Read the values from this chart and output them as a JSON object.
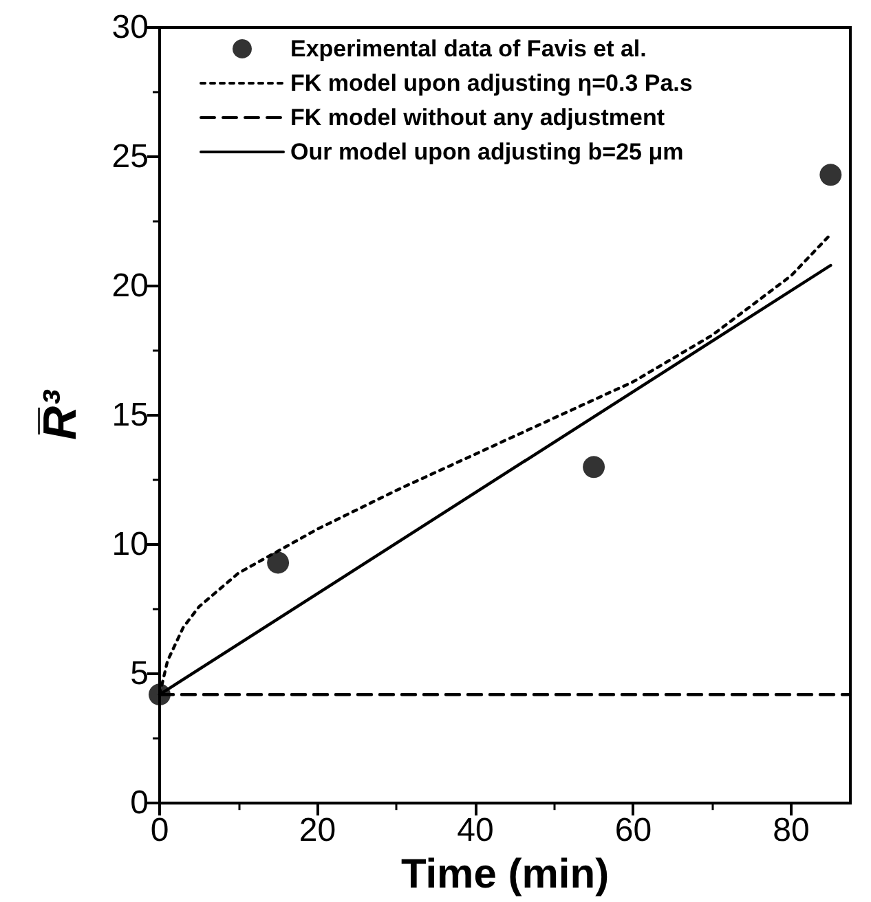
{
  "chart_data": {
    "type": "line",
    "xlabel": "Time (min)",
    "ylabel": "R̅³",
    "xlim": [
      0,
      87.5
    ],
    "xticks": [
      0,
      20,
      40,
      60,
      80
    ],
    "ylim": [
      0,
      30
    ],
    "yticks": [
      0,
      5,
      10,
      15,
      20,
      25,
      30
    ],
    "grid": false,
    "legend": "top",
    "series": [
      {
        "name": "Experimental data of Favis et al.",
        "type": "scatter",
        "marker": "circle",
        "color": "#000000",
        "x": [
          0,
          15,
          55,
          85
        ],
        "values": [
          4.2,
          9.3,
          13,
          24.3
        ]
      },
      {
        "name": "FK model upon adjusting η=0.3 Pa.s",
        "line_style": "dotted",
        "color": "#000000",
        "x": [
          0,
          1,
          3,
          5,
          10,
          20,
          30,
          40,
          50,
          60,
          70,
          80,
          85
        ],
        "values": [
          4.2,
          5.5,
          6.8,
          7.6,
          8.9,
          10.6,
          12.1,
          13.5,
          14.9,
          16.3,
          18.1,
          20.4,
          22.0
        ]
      },
      {
        "name": "FK model without any adjustment",
        "line_style": "dashed",
        "color": "#000000",
        "x": [
          0,
          87.5
        ],
        "values": [
          4.2,
          4.2
        ]
      },
      {
        "name": "Our model upon adjusting b=25 μm",
        "line_style": "solid",
        "color": "#000000",
        "x": [
          0,
          85
        ],
        "values": [
          4.2,
          20.8
        ]
      }
    ]
  }
}
